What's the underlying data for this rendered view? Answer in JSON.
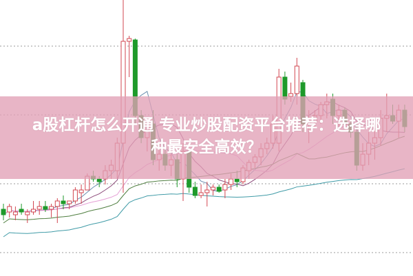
{
  "title": {
    "line1": "a股杠杆怎么开通 专业炒股配资平台推荐：选择哪",
    "line2": "种最安全高效？"
  },
  "colors": {
    "up": "#d2454f",
    "down": "#1e9a2a",
    "banner": "#e2a0b6",
    "ma5": "#6a8fb0",
    "ma10": "#8c4a7a",
    "ma20": "#e59fd6",
    "ma30": "#4d7d3e",
    "ma60": "#3e9aa6",
    "grid": "#999999"
  },
  "chart_data": {
    "type": "candlestick",
    "title": "",
    "grid": true,
    "candles": [
      [
        24,
        26,
        20,
        22
      ],
      [
        23,
        26,
        21,
        25
      ],
      [
        22,
        25,
        20,
        23
      ],
      [
        24,
        26,
        22,
        23
      ],
      [
        22,
        24,
        19,
        23
      ],
      [
        23,
        27,
        22,
        24
      ],
      [
        24,
        27,
        22,
        25
      ],
      [
        25,
        27,
        23,
        24
      ],
      [
        24,
        26,
        21,
        25
      ],
      [
        25,
        28,
        19,
        27
      ],
      [
        27,
        29,
        24,
        26
      ],
      [
        26,
        27,
        24,
        27
      ],
      [
        27,
        32,
        26,
        31
      ],
      [
        30,
        33,
        26,
        31
      ],
      [
        31,
        37,
        31,
        36
      ],
      [
        36,
        38,
        34,
        35
      ],
      [
        35,
        36,
        32,
        34
      ],
      [
        35,
        40,
        33,
        38
      ],
      [
        38,
        42,
        35,
        40
      ],
      [
        38,
        50,
        35,
        48
      ],
      [
        48,
        100,
        30,
        85
      ],
      [
        85,
        87,
        72,
        86
      ],
      [
        85.5,
        86,
        55,
        58
      ],
      [
        58,
        60,
        48,
        50
      ],
      [
        50,
        57,
        45,
        55
      ],
      [
        55,
        60,
        40,
        42
      ],
      [
        42,
        48,
        38,
        44
      ],
      [
        44,
        46,
        38,
        40
      ],
      [
        40,
        44,
        36,
        42
      ],
      [
        42,
        44,
        32,
        35
      ],
      [
        35,
        48,
        27,
        45
      ],
      [
        45,
        46,
        30,
        32
      ],
      [
        32,
        34,
        28,
        29
      ],
      [
        29,
        33,
        28,
        30
      ],
      [
        30,
        34,
        25,
        31
      ],
      [
        31,
        33,
        29,
        32
      ],
      [
        32,
        33,
        30,
        30.5
      ],
      [
        31,
        35,
        28,
        33
      ],
      [
        33,
        37,
        31,
        35
      ],
      [
        35,
        38,
        32,
        34
      ],
      [
        34,
        40,
        33,
        39
      ],
      [
        38,
        42,
        35,
        41
      ],
      [
        41,
        44,
        39,
        43
      ],
      [
        43,
        48,
        40,
        46
      ],
      [
        46,
        50,
        44,
        48
      ],
      [
        48,
        58,
        46,
        55
      ],
      [
        48,
        75,
        45,
        72
      ],
      [
        72,
        74,
        62,
        64
      ],
      [
        65,
        70,
        63,
        66
      ],
      [
        66,
        79,
        62,
        76
      ],
      [
        70,
        71,
        52,
        55
      ],
      [
        55,
        60,
        48,
        56
      ],
      [
        56,
        60,
        54,
        58
      ],
      [
        58,
        63,
        55,
        62
      ],
      [
        62,
        66,
        57,
        63
      ],
      [
        64,
        66,
        55,
        58
      ],
      [
        58,
        62,
        54,
        60
      ],
      [
        60,
        61,
        54,
        55
      ],
      [
        55,
        56,
        50,
        52
      ],
      [
        52,
        55,
        38,
        40
      ],
      [
        40,
        48,
        38,
        44
      ],
      [
        44,
        52,
        40,
        48
      ],
      [
        48,
        55,
        42,
        50
      ],
      [
        50,
        60,
        47,
        57
      ],
      [
        57,
        66,
        52,
        58
      ],
      [
        58,
        62,
        55,
        56
      ],
      [
        56,
        62,
        50,
        60
      ],
      [
        60,
        62,
        52,
        54
      ]
    ],
    "moving_averages": [
      5,
      10,
      20,
      30,
      60
    ]
  }
}
